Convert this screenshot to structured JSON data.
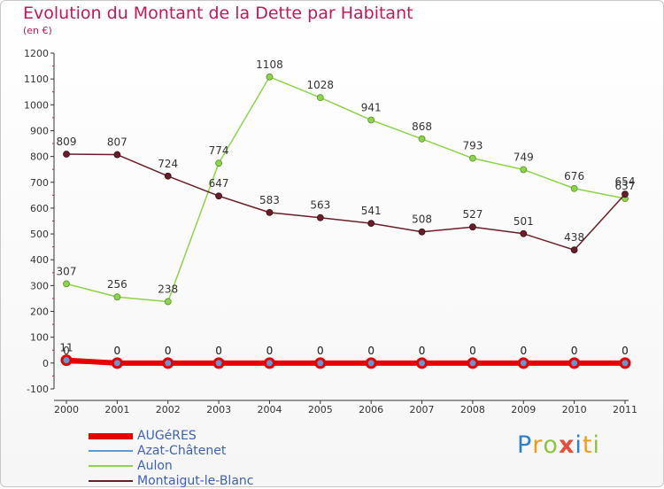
{
  "chart_data": {
    "type": "line",
    "title": "Evolution du Montant de la Dette par Habitant",
    "subtitle": "(en €)",
    "x": [
      "2000",
      "2001",
      "2002",
      "2003",
      "2004",
      "2005",
      "2006",
      "2007",
      "2008",
      "2009",
      "2010",
      "2011"
    ],
    "ylim": [
      -100,
      1200
    ],
    "yticks": [
      -100,
      0,
      100,
      200,
      300,
      400,
      500,
      600,
      700,
      800,
      900,
      1000,
      1100,
      1200
    ],
    "grid": false,
    "legend_position": "bottom-left",
    "series": [
      {
        "name": "AUGéRES",
        "color": "#e60000",
        "values": [
          11,
          0,
          0,
          0,
          0,
          0,
          0,
          0,
          0,
          0,
          0,
          0
        ],
        "labels": [
          "11",
          "0",
          "0",
          "0",
          "0",
          "0",
          "0",
          "0",
          "0",
          "0",
          "0",
          "0"
        ]
      },
      {
        "name": "Azat-Châtenet",
        "color": "#5b9bd5",
        "values": [
          0,
          0,
          0,
          0,
          0,
          0,
          0,
          0,
          0,
          0,
          0,
          0
        ],
        "labels": [
          "0",
          "0",
          "0",
          "0",
          "0",
          "0",
          "0",
          "0",
          "0",
          "0",
          "0",
          "0"
        ]
      },
      {
        "name": "Aulon",
        "color": "#8ed44a",
        "values": [
          307,
          256,
          238,
          774,
          1108,
          1028,
          941,
          868,
          793,
          749,
          676,
          637
        ],
        "labels": [
          "307",
          "256",
          "238",
          "774",
          "1108",
          "1028",
          "941",
          "868",
          "793",
          "749",
          "676",
          "637"
        ]
      },
      {
        "name": "Montaigut-le-Blanc",
        "color": "#6b1e2a",
        "values": [
          809,
          807,
          724,
          647,
          583,
          563,
          541,
          508,
          527,
          501,
          438,
          654
        ],
        "labels": [
          "809",
          "807",
          "724",
          "647",
          "583",
          "563",
          "541",
          "508",
          "527",
          "501",
          "438",
          "654"
        ]
      }
    ]
  },
  "brand": {
    "letters": [
      "P",
      "r",
      "o",
      "x",
      "i",
      "t",
      "i"
    ],
    "colors": [
      "#2f7fd1",
      "#f39c12",
      "#8cc63f",
      "#e74c3c",
      "#2f7fd1",
      "#f39c12",
      "#8cc63f"
    ]
  }
}
